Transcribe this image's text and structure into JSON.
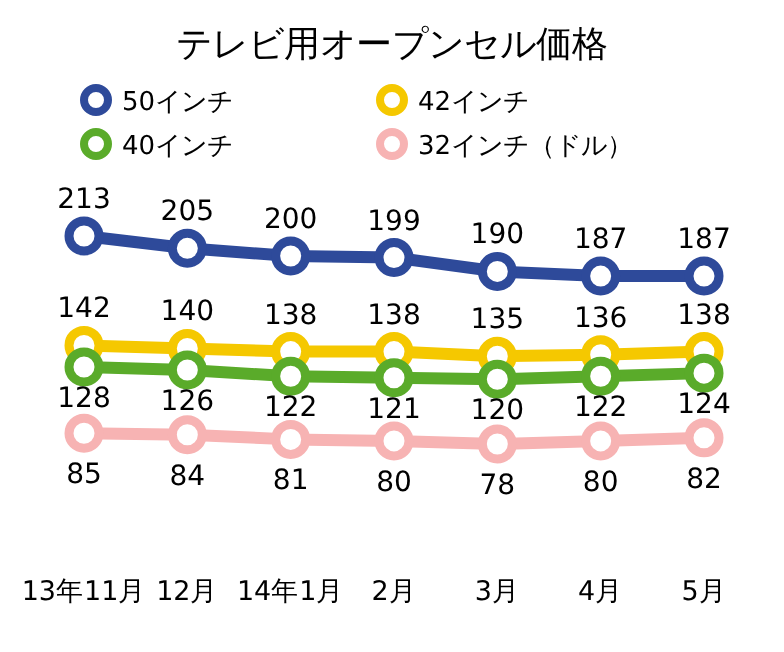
{
  "chart_data": {
    "type": "line",
    "title": "テレビ用オープンセル価格",
    "categories": [
      "13年11月",
      "12月",
      "14年1月",
      "2月",
      "3月",
      "4月",
      "5月"
    ],
    "series": [
      {
        "name": "50インチ",
        "color": "#2e4a9a",
        "values": [
          213,
          205,
          200,
          199,
          190,
          187,
          187
        ]
      },
      {
        "name": "42インチ",
        "color": "#f5c800",
        "values": [
          142,
          140,
          138,
          138,
          135,
          136,
          138
        ]
      },
      {
        "name": "40インチ",
        "color": "#5aab2a",
        "values": [
          128,
          126,
          122,
          121,
          120,
          122,
          124
        ]
      },
      {
        "name": "32インチ（ドル）",
        "color": "#f7b3b3",
        "values": [
          85,
          84,
          81,
          80,
          78,
          80,
          82
        ]
      }
    ],
    "data_labels": true,
    "legend": "top",
    "marker": "circle",
    "line_style": "solid"
  }
}
